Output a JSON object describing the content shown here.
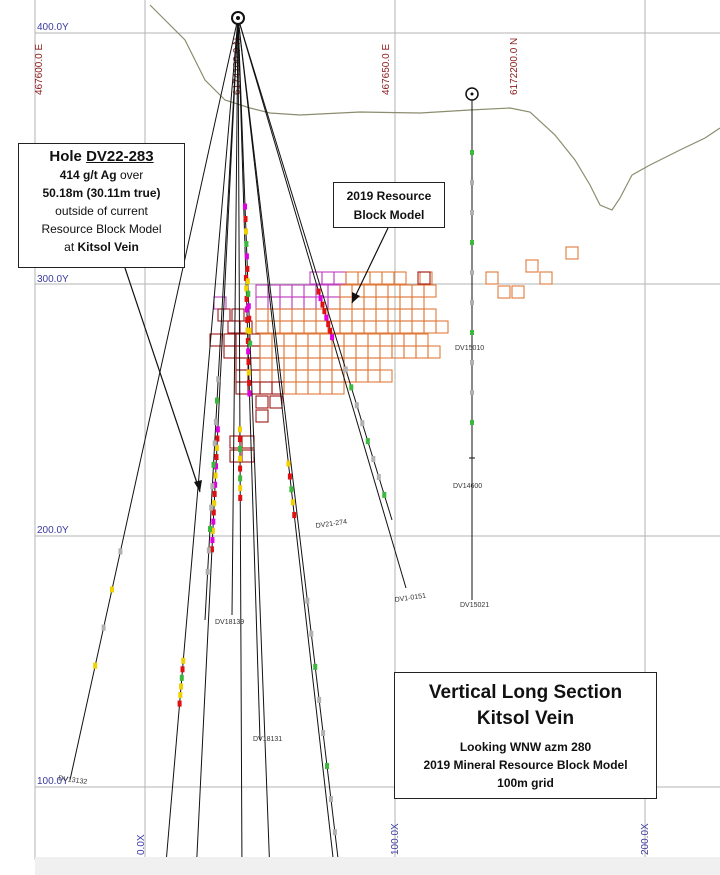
{
  "section": {
    "y_labels": [
      "400.0Y",
      "300.0Y",
      "200.0Y",
      "100.0Y"
    ],
    "x_labels": [
      "0.0X",
      "100.0X",
      "200.0X"
    ],
    "top_labels": [
      "467600.0 E",
      "6174100.0 N",
      "467650.0 E",
      "6172200.0 N"
    ],
    "hole_labels": [
      "DV15010",
      "DV14600",
      "DV15021",
      "DV1-0151",
      "DV21-274",
      "DV18139",
      "DV18131",
      "DV13132"
    ]
  },
  "callout_hole": {
    "prefix": "Hole ",
    "hole_id": "DV22-283",
    "grade": "414 g/t Ag",
    "grade_suffix": " over",
    "interval": "50.18m (30.11m true)",
    "line3": "outside of current",
    "line4": "Resource Block Model",
    "line5_prefix": "at ",
    "vein": "Kitsol Vein"
  },
  "callout_rbm": {
    "line1": "2019 Resource",
    "line2": "Block Model"
  },
  "title_box": {
    "line1": "Vertical Long Section",
    "line2": "Kitsol Vein",
    "line3": "Looking  WNW azm 280",
    "line4": "2019 Mineral Resource Block Model",
    "line5": "100m grid"
  },
  "colors": {
    "grid": "#b3b3b3",
    "topography": "#8c8c6e",
    "block_purple": "#c040c0",
    "block_orange": "#e07a3a",
    "block_red": "#a01818",
    "assay_red": "#e01010",
    "assay_magenta": "#e000e0",
    "assay_yellow": "#f0d000",
    "assay_green": "#3cb83c",
    "assay_gray": "#b0b0b0"
  }
}
